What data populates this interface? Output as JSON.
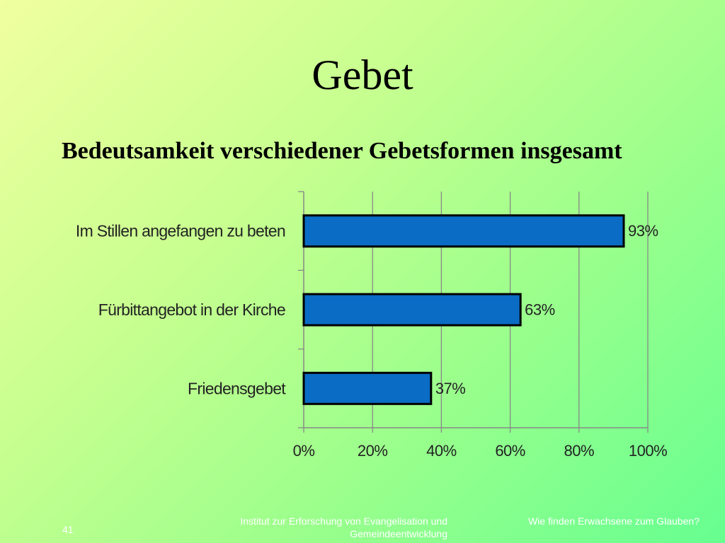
{
  "slide": {
    "title": "Gebet",
    "subtitle": "Bedeutsamkeit verschiedener Gebetsformen insgesamt"
  },
  "footer": {
    "page_number": "41",
    "institute": "Institut zur Erforschung von Evangelisation und Gemeindeentwicklung",
    "presentation": "Wie finden Erwachsene zum Glauben?"
  },
  "colors": {
    "bar_fill": "#0a6cc4",
    "bar_stroke": "#000000",
    "grid": "#888888",
    "axis_text": "#222222"
  },
  "chart_data": {
    "type": "bar",
    "orientation": "horizontal",
    "title": "",
    "xlabel": "",
    "ylabel": "",
    "categories": [
      "Im Stillen angefangen zu beten",
      "Fürbittangebot in der Kirche",
      "Friedensgebet"
    ],
    "values": [
      93,
      63,
      37
    ],
    "data_labels": [
      "93%",
      "63%",
      "37%"
    ],
    "xlim": [
      0,
      100
    ],
    "x_ticks": [
      0,
      20,
      40,
      60,
      80,
      100
    ],
    "x_tick_labels": [
      "0%",
      "20%",
      "40%",
      "60%",
      "80%",
      "100%"
    ],
    "grid": true,
    "legend": "none"
  }
}
